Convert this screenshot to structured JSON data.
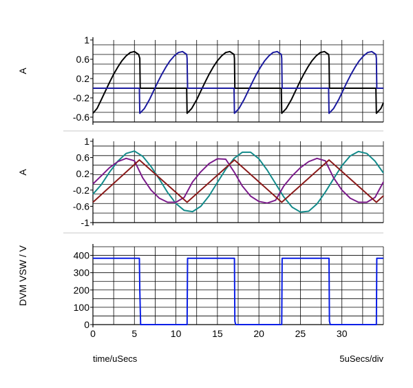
{
  "chart_data": [
    {
      "type": "line",
      "ylabel": "A",
      "ylim": [
        -0.7,
        1.0
      ],
      "yticks": [
        "1",
        "0.6",
        "0.2",
        "-0.2",
        "-0.6"
      ],
      "ytick_values": [
        1,
        0.6,
        0.2,
        -0.2,
        -0.6
      ],
      "xlim": [
        0,
        35
      ],
      "grid": true,
      "series": [
        {
          "color": "#000000",
          "x": [
            0,
            0.5,
            1,
            1.5,
            2,
            2.5,
            3,
            3.5,
            4,
            4.5,
            5,
            5.5,
            5.65,
            5.7,
            11.3,
            11.35,
            11.9,
            12.5,
            13,
            13.5,
            14,
            14.5,
            15,
            15.5,
            16,
            16.5,
            17,
            17.05,
            17.1,
            22.7,
            22.75,
            23.3,
            23.9,
            24.4,
            24.9,
            25.4,
            25.9,
            26.4,
            26.9,
            27.4,
            27.9,
            28.4,
            28.45,
            28.5,
            34.1,
            34.15,
            34.7,
            35
          ],
          "y": [
            -0.52,
            -0.42,
            -0.24,
            -0.06,
            0.12,
            0.29,
            0.44,
            0.57,
            0.67,
            0.74,
            0.76,
            0.7,
            0.62,
            0.0,
            0.0,
            -0.52,
            -0.42,
            -0.24,
            -0.06,
            0.12,
            0.29,
            0.44,
            0.57,
            0.67,
            0.74,
            0.76,
            0.7,
            0.62,
            0.0,
            0.0,
            -0.52,
            -0.42,
            -0.24,
            -0.06,
            0.12,
            0.29,
            0.44,
            0.57,
            0.67,
            0.74,
            0.76,
            0.7,
            0.62,
            0.0,
            0.0,
            -0.52,
            -0.42,
            -0.3
          ]
        },
        {
          "color": "#1a1a9e",
          "x": [
            0,
            5.6,
            5.65,
            6.2,
            6.8,
            7.3,
            7.8,
            8.3,
            8.8,
            9.3,
            9.8,
            10.3,
            10.8,
            11.3,
            11.35,
            11.4,
            17.0,
            17.05,
            17.6,
            18.2,
            18.7,
            19.2,
            19.7,
            20.2,
            20.7,
            21.2,
            21.7,
            22.2,
            22.7,
            22.75,
            22.8,
            28.4,
            28.45,
            29.0,
            29.6,
            30.1,
            30.6,
            31.1,
            31.6,
            32.1,
            32.6,
            33.1,
            33.6,
            34.1,
            34.15,
            34.2,
            35
          ],
          "y": [
            0.0,
            0.0,
            -0.52,
            -0.42,
            -0.24,
            -0.06,
            0.12,
            0.29,
            0.44,
            0.57,
            0.67,
            0.74,
            0.76,
            0.7,
            0.62,
            0.0,
            0.0,
            -0.52,
            -0.42,
            -0.24,
            -0.06,
            0.12,
            0.29,
            0.44,
            0.57,
            0.67,
            0.74,
            0.76,
            0.7,
            0.62,
            0.0,
            0.0,
            -0.52,
            -0.42,
            -0.24,
            -0.06,
            0.12,
            0.29,
            0.44,
            0.57,
            0.67,
            0.74,
            0.76,
            0.7,
            0.62,
            0.0,
            0.0
          ]
        }
      ]
    },
    {
      "type": "line",
      "ylabel": "A",
      "ylim": [
        -1.0,
        1.0
      ],
      "yticks": [
        "1",
        "0.6",
        "0.2",
        "-0.2",
        "-0.6",
        "-1"
      ],
      "ytick_values": [
        1,
        0.6,
        0.2,
        -0.2,
        -0.6,
        -1
      ],
      "xlim": [
        0,
        35
      ],
      "grid": true,
      "series": [
        {
          "color": "#128a8a",
          "x": [
            0,
            1,
            2,
            3,
            4,
            5,
            6,
            7,
            8,
            9,
            10,
            11,
            12,
            13,
            14,
            15,
            16,
            17,
            18,
            19,
            20,
            21,
            22,
            23,
            24,
            25,
            26,
            27,
            28,
            29,
            30,
            31,
            32,
            33,
            34,
            35
          ],
          "y": [
            -0.3,
            -0.07,
            0.24,
            0.51,
            0.7,
            0.76,
            0.63,
            0.38,
            0.07,
            -0.26,
            -0.53,
            -0.7,
            -0.73,
            -0.6,
            -0.34,
            -0.01,
            0.31,
            0.58,
            0.73,
            0.73,
            0.57,
            0.29,
            -0.04,
            -0.37,
            -0.62,
            -0.74,
            -0.72,
            -0.54,
            -0.25,
            0.08,
            0.4,
            0.64,
            0.75,
            0.7,
            0.51,
            0.22
          ]
        },
        {
          "color": "#7a1a8a",
          "x": [
            0,
            1,
            2,
            3,
            4,
            5,
            6,
            7,
            8,
            9,
            10,
            11,
            12,
            13,
            14,
            15,
            16,
            17,
            18,
            19,
            20,
            21,
            22,
            23,
            24,
            25,
            26,
            27,
            28,
            29,
            30,
            31,
            32,
            33,
            34,
            35
          ],
          "y": [
            -0.05,
            0.15,
            0.35,
            0.5,
            0.58,
            0.52,
            0.1,
            -0.2,
            -0.4,
            -0.5,
            -0.5,
            -0.38,
            0.0,
            0.25,
            0.45,
            0.57,
            0.56,
            0.25,
            -0.1,
            -0.35,
            -0.48,
            -0.52,
            -0.45,
            -0.1,
            0.15,
            0.35,
            0.5,
            0.58,
            0.52,
            0.1,
            -0.2,
            -0.4,
            -0.5,
            -0.5,
            -0.38,
            0.0
          ]
        },
        {
          "color": "#8a1a1a",
          "x": [
            0,
            5.6,
            11.35,
            17.05,
            22.75,
            28.45,
            34.15,
            35
          ],
          "y": [
            -0.5,
            0.54,
            -0.5,
            0.54,
            -0.5,
            0.54,
            -0.5,
            -0.34
          ]
        }
      ]
    },
    {
      "type": "line",
      "ylabel": "DVM VSW / V",
      "ylim": [
        0,
        450
      ],
      "yticks": [
        "400",
        "300",
        "200",
        "100",
        "0"
      ],
      "ytick_values": [
        400,
        300,
        200,
        100,
        0
      ],
      "xlim": [
        0,
        35
      ],
      "xticks": [
        "0",
        "5",
        "10",
        "15",
        "20",
        "25",
        "30"
      ],
      "xtick_values": [
        0,
        5,
        10,
        15,
        20,
        25,
        30
      ],
      "xlabel": "time/uSecs",
      "xscale_note": "5uSecs/div",
      "grid": true,
      "series": [
        {
          "color": "#0a1ee6",
          "x": [
            0,
            5.6,
            5.65,
            5.75,
            11.35,
            11.4,
            17.05,
            17.1,
            17.2,
            22.75,
            22.8,
            28.45,
            28.5,
            28.6,
            34.15,
            34.2,
            35
          ],
          "y": [
            383,
            383,
            200,
            0,
            0,
            383,
            383,
            20,
            0,
            0,
            383,
            383,
            20,
            0,
            0,
            383,
            383
          ]
        }
      ]
    }
  ]
}
